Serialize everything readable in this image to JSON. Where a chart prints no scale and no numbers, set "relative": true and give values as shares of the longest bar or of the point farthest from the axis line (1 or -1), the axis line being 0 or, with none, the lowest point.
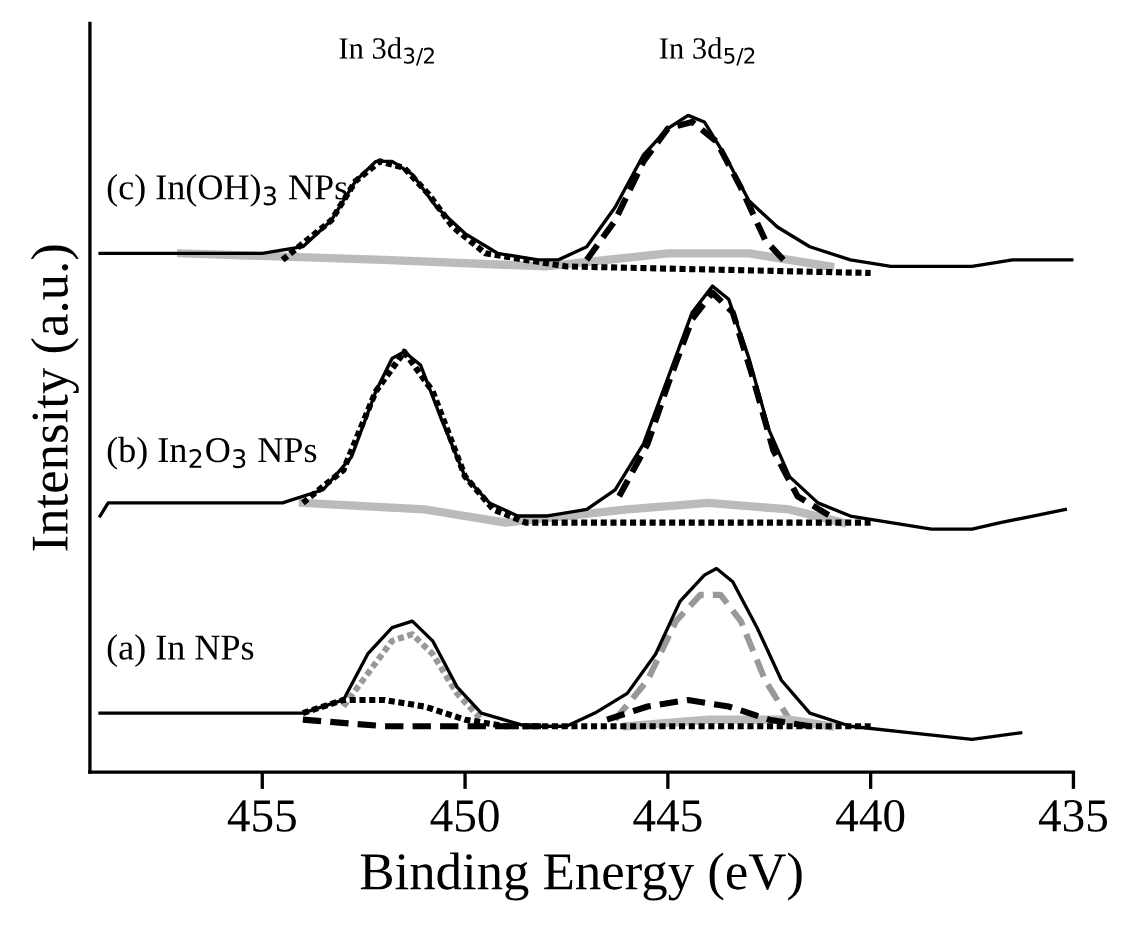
{
  "chart_data": {
    "type": "line",
    "relative": true,
    "xlabel": "Binding Energy (eV)",
    "ylabel": "Intensity (a.u.)",
    "xlim": [
      459.25,
      435
    ],
    "xticks": [
      455,
      450,
      445,
      440,
      435
    ],
    "tick_labels": "x",
    "grid": false,
    "annotations": [
      "In 3d$_{3/2}$",
      "In 3d$_{5/2}$"
    ],
    "series": [
      {
        "name": "(c) In(OH)$_{3}$ NPs",
        "color": "#000000",
        "line_style": "solid",
        "x": [
          459.0,
          456.5,
          455,
          454,
          453.3,
          452.7,
          452.2,
          451.8,
          451.3,
          450.7,
          450,
          449.2,
          448.2,
          447.7,
          447,
          446.3,
          445.6,
          445,
          444.5,
          444.1,
          443.6,
          443,
          442.3,
          441.5,
          440.5,
          439.5,
          438.5,
          437.5,
          436.5,
          435.8,
          435.0
        ],
        "values": [
          0.79,
          0.79,
          0.79,
          0.8,
          0.84,
          0.9,
          0.93,
          0.93,
          0.91,
          0.86,
          0.82,
          0.79,
          0.78,
          0.78,
          0.8,
          0.86,
          0.94,
          0.98,
          1.0,
          0.99,
          0.94,
          0.87,
          0.83,
          0.8,
          0.78,
          0.77,
          0.77,
          0.77,
          0.78,
          0.78,
          0.78
        ]
      },
      {
        "color": "#000000",
        "line_style": "dotted",
        "x": [
          454.5,
          453.3,
          452.7,
          452.1,
          451.5,
          450.9,
          450.3,
          449.5,
          448.5,
          447.5,
          440
        ],
        "values": [
          0.78,
          0.84,
          0.9,
          0.93,
          0.92,
          0.88,
          0.83,
          0.79,
          0.78,
          0.77,
          0.76
        ]
      },
      {
        "color": "#000000",
        "line_style": "dashed",
        "x": [
          447,
          446.3,
          445.6,
          445,
          444.4,
          443.8,
          443.2,
          442.6,
          442
        ],
        "values": [
          0.78,
          0.84,
          0.93,
          0.98,
          0.99,
          0.96,
          0.89,
          0.81,
          0.77
        ]
      },
      {
        "color": "#bbbbbb",
        "line_style": "solid",
        "x": [
          457,
          452,
          448,
          445,
          443,
          441
        ],
        "values": [
          0.79,
          0.78,
          0.77,
          0.79,
          0.79,
          0.77
        ]
      },
      {
        "name": "(b) In$_{2}$O$_{3}$ NPs",
        "color": "#000000",
        "line_style": "solid",
        "x": [
          459.0,
          458.8,
          456,
          454.5,
          453.5,
          452.8,
          452.2,
          451.8,
          451.5,
          451.1,
          450.6,
          450,
          449.4,
          448.7,
          448,
          447,
          446.3,
          445.6,
          445,
          444.4,
          443.9,
          443.5,
          443,
          442.5,
          442,
          441.3,
          440.5,
          439.5,
          438.5,
          437.5,
          436.8,
          436,
          435.2
        ],
        "values": [
          0.39,
          0.41,
          0.41,
          0.41,
          0.43,
          0.48,
          0.58,
          0.63,
          0.64,
          0.62,
          0.54,
          0.45,
          0.41,
          0.39,
          0.39,
          0.4,
          0.43,
          0.5,
          0.6,
          0.7,
          0.74,
          0.72,
          0.63,
          0.52,
          0.45,
          0.41,
          0.39,
          0.38,
          0.37,
          0.37,
          0.38,
          0.39,
          0.4
        ]
      },
      {
        "color": "#000000",
        "line_style": "dotted",
        "x": [
          454,
          453,
          452.2,
          451.5,
          450.8,
          450,
          449.3,
          448.5,
          447,
          440
        ],
        "values": [
          0.41,
          0.46,
          0.58,
          0.64,
          0.58,
          0.45,
          0.4,
          0.38,
          0.38,
          0.38
        ]
      },
      {
        "color": "#000000",
        "line_style": "dashed",
        "x": [
          446.2,
          445.5,
          445,
          444.4,
          443.9,
          443.4,
          442.9,
          442.4,
          441.8,
          441
        ],
        "values": [
          0.42,
          0.5,
          0.59,
          0.69,
          0.73,
          0.7,
          0.6,
          0.49,
          0.42,
          0.39
        ]
      },
      {
        "color": "#bbbbbb",
        "line_style": "solid",
        "x": [
          454,
          451,
          449,
          446,
          444,
          442,
          440.7
        ],
        "values": [
          0.41,
          0.4,
          0.38,
          0.4,
          0.41,
          0.4,
          0.38
        ]
      },
      {
        "name": "(a) In NPs",
        "color": "#000000",
        "line_style": "solid",
        "x": [
          459.0,
          457,
          455,
          454,
          453,
          452.4,
          451.8,
          451.3,
          450.8,
          450.2,
          449.6,
          448.5,
          447.5,
          446.8,
          446,
          445.3,
          444.7,
          444.1,
          443.8,
          443.4,
          442.8,
          442.2,
          441.5,
          440.5,
          439,
          437.5,
          436.3
        ],
        "values": [
          0.09,
          0.09,
          0.09,
          0.09,
          0.11,
          0.18,
          0.22,
          0.23,
          0.2,
          0.13,
          0.09,
          0.07,
          0.07,
          0.09,
          0.12,
          0.18,
          0.26,
          0.3,
          0.31,
          0.29,
          0.22,
          0.14,
          0.09,
          0.07,
          0.06,
          0.05,
          0.06
        ]
      },
      {
        "color": "#999999",
        "line_style": "dotted",
        "x": [
          453,
          452.4,
          451.8,
          451.3,
          450.8,
          450.2,
          449.6
        ],
        "values": [
          0.1,
          0.15,
          0.2,
          0.21,
          0.18,
          0.12,
          0.08
        ]
      },
      {
        "color": "#000000",
        "line_style": "dotted",
        "x": [
          454,
          453,
          452,
          451,
          450,
          449,
          440
        ],
        "values": [
          0.09,
          0.11,
          0.11,
          0.1,
          0.08,
          0.07,
          0.07
        ]
      },
      {
        "color": "#000000",
        "line_style": "dashed",
        "x": [
          454,
          452,
          450,
          448
        ],
        "values": [
          0.08,
          0.07,
          0.07,
          0.07
        ]
      },
      {
        "color": "#999999",
        "line_style": "dashed",
        "x": [
          446.3,
          445.5,
          444.8,
          444.2,
          443.7,
          443.2,
          442.6,
          442
        ],
        "values": [
          0.08,
          0.14,
          0.23,
          0.27,
          0.27,
          0.23,
          0.14,
          0.08
        ]
      },
      {
        "color": "#000000",
        "line_style": "dashed",
        "x": [
          446.5,
          445.5,
          444.5,
          443.5,
          442.5,
          441.5
        ],
        "values": [
          0.08,
          0.1,
          0.11,
          0.1,
          0.08,
          0.07
        ]
      },
      {
        "color": "#bbbbbb",
        "line_style": "solid",
        "x": [
          446,
          444,
          442,
          441
        ],
        "values": [
          0.07,
          0.08,
          0.08,
          0.07
        ]
      }
    ]
  }
}
